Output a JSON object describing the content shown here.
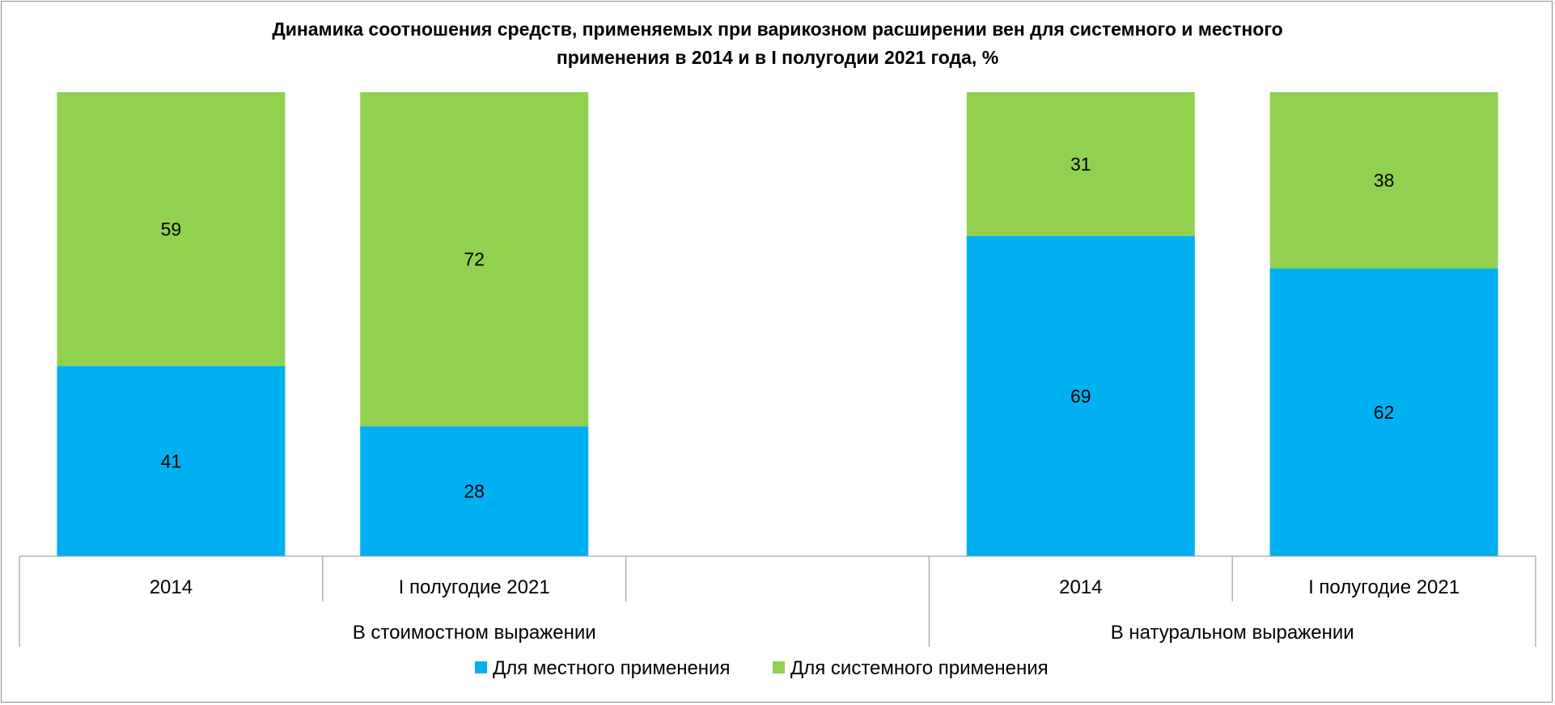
{
  "chart_data": {
    "type": "bar",
    "stacked": true,
    "percent": true,
    "title": "Динамика соотношения средств, применяемых при варикозном расширении вен  для системного и местного применения   в 2014 и в I полугодии 2021 года, %",
    "title_lines": [
      "Динамика соотношения средств, применяемых при варикозном расширении вен  для системного и местного",
      "применения   в 2014 и в I полугодии 2021 года, %"
    ],
    "categories": [
      "2014",
      "I полугодие 2021",
      "",
      "2014",
      "I полугодие 2021"
    ],
    "groups": [
      {
        "label": "В стоимостном выражении",
        "span": 3
      },
      {
        "label": "В натуральном выражении",
        "span": 2
      }
    ],
    "series": [
      {
        "name": "Для местного применения",
        "color": "#00B0F0",
        "values": [
          41,
          28,
          null,
          69,
          62
        ]
      },
      {
        "name": "Для системного применения",
        "color": "#92D050",
        "values": [
          59,
          72,
          null,
          31,
          38
        ]
      }
    ],
    "ylim": [
      0,
      100
    ],
    "legend": "bottom",
    "grid": false
  }
}
